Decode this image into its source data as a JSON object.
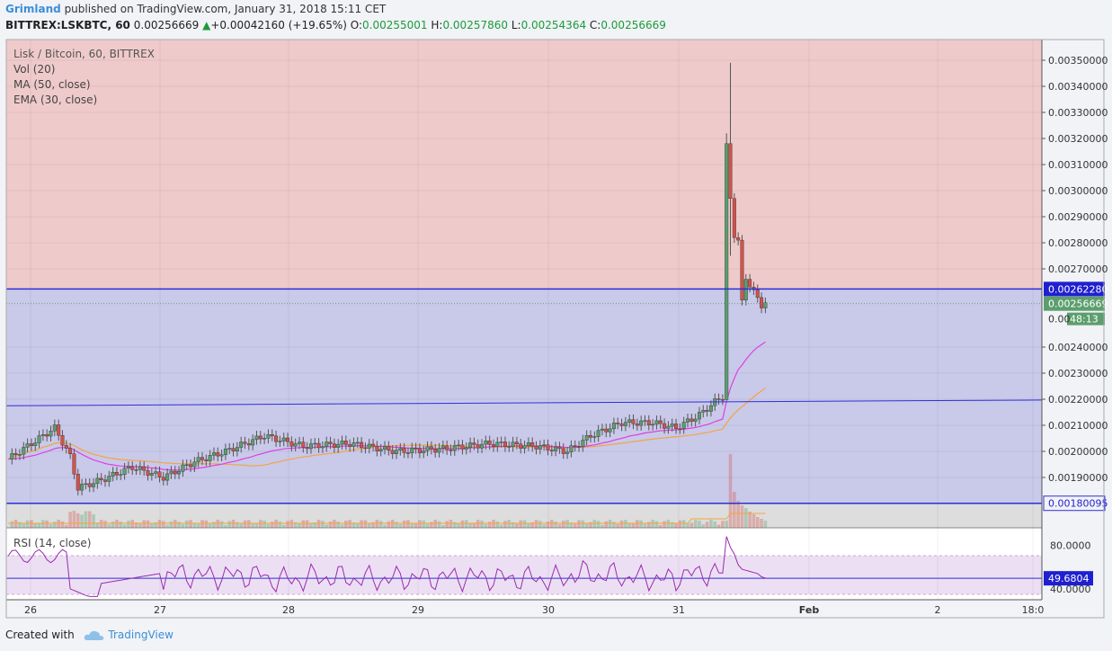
{
  "header": {
    "author": "Grimland",
    "published_text": "published on TradingView.com, January 31, 2018 15:11 CET",
    "symbol_line": "BITTREX:LSKBTC, 60",
    "last_price": "0.00256669",
    "change_arrow": "▲",
    "change": "+0.00042160 (+19.65%)",
    "o_label": "O:",
    "o_value": "0.00255001",
    "h_label": "H:",
    "h_value": "0.00257860",
    "l_label": "L:",
    "l_value": "0.00254364",
    "c_label": "C:",
    "c_value": "0.00256669"
  },
  "legend": {
    "title": "Lisk / Bitcoin, 60, BITTREX",
    "vol": "Vol (20)",
    "ma": "MA (50, close)",
    "ema": "EMA (30, close)"
  },
  "rsi_legend": "RSI (14, close)",
  "footer": {
    "created_with": "Created with",
    "brand": "TradingView"
  },
  "colors": {
    "up": "#5c9e6e",
    "down": "#d3524a",
    "resistance_zone": "#f2c6c4",
    "support_zone": "#c9c9ea",
    "ma": "#f2a541",
    "ema": "#e040e0",
    "rsi_line": "#9a2bb0",
    "level_line": "#2f2fd6",
    "last_price": "#5c9e6e"
  },
  "chart_data": {
    "type": "candlestick",
    "price_axis": {
      "ticks": [
        "0.00350000",
        "0.00340000",
        "0.00330000",
        "0.00320000",
        "0.00310000",
        "0.00300000",
        "0.00290000",
        "0.00280000",
        "0.00270000",
        "0.00240000",
        "0.00230000",
        "0.00220000",
        "0.00210000",
        "0.00200000",
        "0.00190000"
      ],
      "range": [
        0.00176,
        0.00356
      ]
    },
    "time_axis": {
      "ticks": [
        "26",
        "27",
        "28",
        "29",
        "30",
        "31",
        "Feb",
        "2",
        "18:0"
      ]
    },
    "levels": [
      {
        "label": "0.00262280",
        "value": 0.0026228
      },
      {
        "label": "0.00180095",
        "value": 0.00180095
      }
    ],
    "trendline": {
      "from": [
        "26",
        0.00218
      ],
      "to": [
        "Feb",
        0.0022
      ]
    },
    "last_price_label": "0.00256669",
    "countdown": "48:13",
    "countdown_prefix": "0.00",
    "key_candles": [
      {
        "time": "Jan 31 ~05:00",
        "open": 0.00221,
        "high": 0.00222,
        "low": 0.0022,
        "close": 0.00318
      },
      {
        "time": "Jan 31 ~06:00",
        "open": 0.0032,
        "high": 0.00349,
        "low": 0.00275,
        "close": 0.00297
      },
      {
        "time": "Jan 31 ~15:00",
        "open": 0.00255,
        "high": 0.00258,
        "low": 0.00254,
        "close": 0.00257
      }
    ],
    "rsi": {
      "ticks": [
        "80.0000",
        "40.0000"
      ],
      "last": "49.6804",
      "range": [
        30,
        96
      ],
      "bands": [
        70,
        30
      ]
    }
  }
}
